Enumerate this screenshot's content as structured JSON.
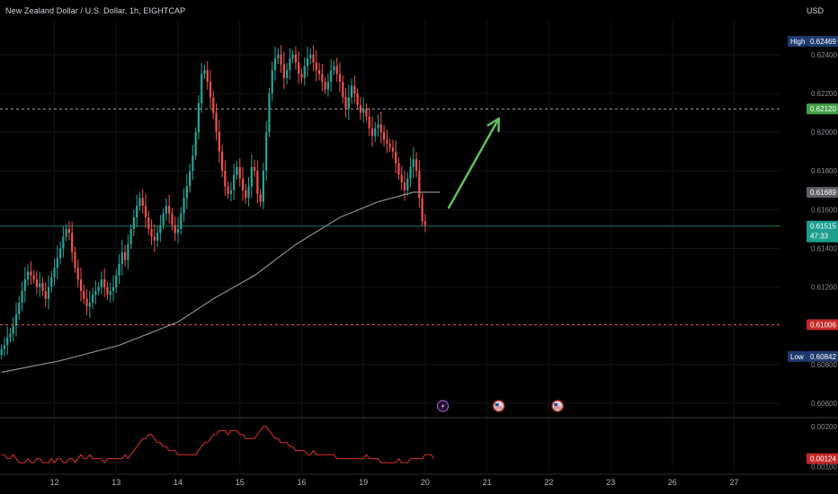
{
  "header": {
    "title": "New Zealand Dollar / U.S. Dollar, 1h, EIGHTCAP",
    "currency": "USD"
  },
  "colors": {
    "background": "#000000",
    "up": "#26a69a",
    "down": "#ef5350",
    "ma": "#8d8d8d",
    "arrow": "#5fbf5a",
    "resistance": "#b2b5be",
    "support": "#ef5350",
    "osc": "#e0312e"
  },
  "chart_data": {
    "type": "candlestick",
    "title": "New Zealand Dollar / U.S. Dollar, 1h, EIGHTCAP",
    "ylim": [
      0.6054,
      0.6258
    ],
    "y_ticks": [
      "0.62400",
      "0.62200",
      "0.62000",
      "0.61800",
      "0.61600",
      "0.61400",
      "0.61200",
      "0.61000",
      "0.60800",
      "0.60600"
    ],
    "x_ticks": [
      {
        "label": "12",
        "idx": 18
      },
      {
        "label": "13",
        "idx": 39
      },
      {
        "label": "14",
        "idx": 60
      },
      {
        "label": "15",
        "idx": 81
      },
      {
        "label": "16",
        "idx": 102
      },
      {
        "label": "19",
        "idx": 123
      },
      {
        "label": "20",
        "idx": 144
      },
      {
        "label": "21",
        "idx": 165
      },
      {
        "label": "22",
        "idx": 186
      },
      {
        "label": "23",
        "idx": 207
      },
      {
        "label": "26",
        "idx": 228
      },
      {
        "label": "27",
        "idx": 249
      }
    ],
    "bar_count_span": 264,
    "closes": [
      0.6088,
      0.609,
      0.6094,
      0.6096,
      0.61,
      0.6106,
      0.6112,
      0.6118,
      0.6124,
      0.6128,
      0.6126,
      0.6124,
      0.612,
      0.6122,
      0.6118,
      0.6114,
      0.612,
      0.6125,
      0.613,
      0.6135,
      0.614,
      0.6146,
      0.615,
      0.6148,
      0.6138,
      0.613,
      0.6124,
      0.6118,
      0.6114,
      0.611,
      0.6112,
      0.6116,
      0.6118,
      0.612,
      0.6124,
      0.612,
      0.6116,
      0.6118,
      0.612,
      0.6126,
      0.6132,
      0.6138,
      0.6134,
      0.6142,
      0.615,
      0.6156,
      0.6162,
      0.6166,
      0.6162,
      0.6156,
      0.615,
      0.6146,
      0.6144,
      0.6148,
      0.6152,
      0.6158,
      0.6162,
      0.6158,
      0.6152,
      0.6148,
      0.615,
      0.6158,
      0.6166,
      0.6172,
      0.618,
      0.6188,
      0.62,
      0.6215,
      0.623,
      0.6232,
      0.6226,
      0.6218,
      0.621,
      0.62,
      0.619,
      0.618,
      0.6172,
      0.6168,
      0.617,
      0.6178,
      0.6182,
      0.6176,
      0.617,
      0.6166,
      0.6172,
      0.6182,
      0.618,
      0.6168,
      0.6164,
      0.618,
      0.62,
      0.622,
      0.6232,
      0.6238,
      0.624,
      0.6235,
      0.6228,
      0.6232,
      0.6238,
      0.624,
      0.6236,
      0.623,
      0.6228,
      0.6234,
      0.6238,
      0.624,
      0.6236,
      0.6232,
      0.623,
      0.6226,
      0.6222,
      0.6226,
      0.6232,
      0.6234,
      0.623,
      0.6226,
      0.6218,
      0.6212,
      0.6218,
      0.6224,
      0.622,
      0.6214,
      0.621,
      0.6212,
      0.6208,
      0.6202,
      0.6198,
      0.6202,
      0.6204,
      0.62,
      0.6196,
      0.6194,
      0.6192,
      0.619,
      0.6184,
      0.6178,
      0.6174,
      0.617,
      0.6176,
      0.6182,
      0.6186,
      0.618,
      0.6166,
      0.6154,
      0.6152
    ],
    "ma_values": [
      {
        "idx": 0,
        "value": 0.6076
      },
      {
        "idx": 20,
        "value": 0.6082
      },
      {
        "idx": 40,
        "value": 0.609
      },
      {
        "idx": 60,
        "value": 0.6102
      },
      {
        "idx": 72,
        "value": 0.6114
      },
      {
        "idx": 86,
        "value": 0.6126
      },
      {
        "idx": 100,
        "value": 0.6142
      },
      {
        "idx": 115,
        "value": 0.6156
      },
      {
        "idx": 128,
        "value": 0.6164
      },
      {
        "idx": 140,
        "value": 0.6169
      },
      {
        "idx": 149,
        "value": 0.6169
      }
    ],
    "horizontal_lines": [
      {
        "value": 0.6212,
        "style": "dashed",
        "label": "0.62120"
      },
      {
        "value": 0.61006,
        "style": "dashed",
        "label": "0.61006"
      },
      {
        "value": 0.61515,
        "style": "solid",
        "label": "0.61515"
      }
    ],
    "price_badges": [
      {
        "kind": "high",
        "prefix": "High",
        "value": "0.62469",
        "y": 0.62469
      },
      {
        "kind": "ma",
        "value": "0.61689",
        "y": 0.61689
      },
      {
        "kind": "last",
        "value": "0.61515",
        "timer": "47:33",
        "y": 0.61515
      },
      {
        "kind": "low",
        "prefix": "Low",
        "value": "0.60842",
        "y": 0.60842
      },
      {
        "kind": "support",
        "value": "0.61006",
        "y": 0.61006
      },
      {
        "kind": "resistance",
        "value": "0.62120",
        "y": 0.6212
      }
    ],
    "arrow": {
      "from": {
        "idx": 152,
        "value": 0.6161
      },
      "to": {
        "idx": 169,
        "value": 0.6207
      }
    },
    "event_icons": [
      {
        "kind": "lightning",
        "idx": 150
      },
      {
        "kind": "flag",
        "idx": 169
      },
      {
        "kind": "flag",
        "idx": 189
      }
    ],
    "oscillator": {
      "ylim": [
        0.0009,
        0.0022
      ],
      "y_ticks": [
        "0.00200",
        "0.00100"
      ],
      "last_label": "0.00124",
      "values": [
        0.0013,
        0.0013,
        0.0012,
        0.0012,
        0.0013,
        0.0012,
        0.0011,
        0.0011,
        0.0011,
        0.0012,
        0.0011,
        0.0011,
        0.0012,
        0.0012,
        0.0011,
        0.0011,
        0.0011,
        0.0012,
        0.0011,
        0.0012,
        0.0012,
        0.0011,
        0.0011,
        0.0012,
        0.0012,
        0.0011,
        0.0012,
        0.0013,
        0.0012,
        0.0012,
        0.0013,
        0.0012,
        0.0012,
        0.0012,
        0.0012,
        0.0011,
        0.0012,
        0.0012,
        0.0012,
        0.0012,
        0.0012,
        0.0012,
        0.0013,
        0.0012,
        0.0013,
        0.0014,
        0.0015,
        0.0016,
        0.0017,
        0.0017,
        0.0018,
        0.0018,
        0.0017,
        0.0016,
        0.0016,
        0.0015,
        0.0015,
        0.0014,
        0.0014,
        0.0014,
        0.0013,
        0.0013,
        0.0013,
        0.0013,
        0.0013,
        0.0013,
        0.0013,
        0.0014,
        0.0015,
        0.0016,
        0.0016,
        0.0017,
        0.0018,
        0.0018,
        0.0019,
        0.0019,
        0.0019,
        0.0018,
        0.0019,
        0.0019,
        0.0019,
        0.0018,
        0.0018,
        0.0017,
        0.0017,
        0.0017,
        0.0017,
        0.0018,
        0.0019,
        0.002,
        0.002,
        0.0019,
        0.0018,
        0.0017,
        0.0017,
        0.0016,
        0.0016,
        0.0016,
        0.0015,
        0.0015,
        0.0014,
        0.0014,
        0.0014,
        0.0014,
        0.0013,
        0.0013,
        0.0014,
        0.0013,
        0.0013,
        0.0013,
        0.0013,
        0.0013,
        0.0013,
        0.0013,
        0.0012,
        0.0012,
        0.0012,
        0.0012,
        0.0012,
        0.0012,
        0.0012,
        0.0012,
        0.0012,
        0.0012,
        0.0013,
        0.0012,
        0.0012,
        0.0012,
        0.0012,
        0.0011,
        0.0011,
        0.0011,
        0.0011,
        0.0011,
        0.0011,
        0.0012,
        0.0011,
        0.0011,
        0.0011,
        0.0012,
        0.0012,
        0.0012,
        0.0012,
        0.0012,
        0.0013,
        0.0013,
        0.0013,
        0.0012
      ]
    }
  }
}
